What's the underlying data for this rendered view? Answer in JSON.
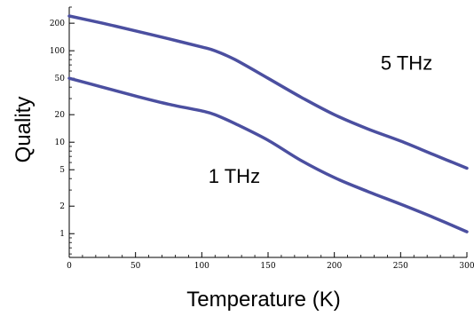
{
  "chart_data": {
    "type": "line",
    "xlabel": "Temperature (K)",
    "ylabel": "Quality",
    "xlim": [
      0,
      300
    ],
    "ylim": [
      0.55,
      300
    ],
    "y_scale": "log",
    "grid": false,
    "x_ticks": [
      0,
      50,
      100,
      150,
      200,
      250,
      300
    ],
    "x_tick_labels": [
      "0",
      "50",
      "100",
      "150",
      "200",
      "250",
      "300"
    ],
    "y_ticks": [
      1,
      2,
      5,
      10,
      20,
      50,
      100,
      200
    ],
    "y_tick_labels": [
      "1",
      "2",
      "5",
      "10",
      "20",
      "50",
      "100",
      "200"
    ],
    "line_color": "#4b4fa0",
    "series": [
      {
        "name": "5 THz",
        "label_at": [
          235,
          62
        ],
        "x": [
          0,
          25,
          50,
          75,
          100,
          110,
          125,
          150,
          175,
          200,
          225,
          250,
          275,
          300
        ],
        "y": [
          240,
          200,
          165,
          135,
          110,
          100,
          80,
          50,
          31,
          20,
          14,
          10.3,
          7.3,
          5.2
        ]
      },
      {
        "name": "1 THz",
        "label_at": [
          105,
          3.6
        ],
        "x": [
          0,
          25,
          50,
          75,
          100,
          110,
          125,
          150,
          175,
          200,
          225,
          250,
          275,
          300
        ],
        "y": [
          50,
          40,
          32,
          26,
          22,
          20,
          16,
          10.5,
          6.3,
          4.1,
          2.9,
          2.1,
          1.5,
          1.05
        ]
      }
    ]
  }
}
